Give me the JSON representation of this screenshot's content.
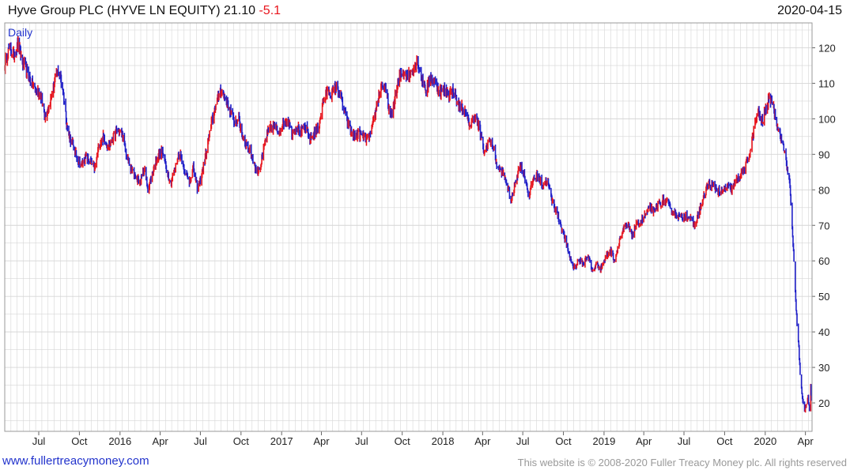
{
  "header": {
    "title": "Hyve Group PLC (HYVE LN EQUITY)",
    "last": "21.10",
    "change": "-5.1",
    "date": "2020-04-15"
  },
  "period_label": "Daily",
  "footer": {
    "site": "www.fullertreacymoney.com",
    "copyright": "This website is © 2008-2020 Fuller Treacy Money plc. All rights reserved"
  },
  "colors": {
    "up": "#e8141c",
    "down": "#1f1fc8",
    "grid": "#d6d6d6"
  },
  "chart_data": {
    "type": "line",
    "title": "Hyve Group PLC (HYVE LN EQUITY)",
    "ylim": [
      12,
      127
    ],
    "xlim": [
      "2015-04-15",
      "2020-04-16"
    ],
    "y_ticks": [
      20,
      30,
      40,
      50,
      60,
      70,
      80,
      90,
      100,
      110,
      120
    ],
    "x_ticks": [
      {
        "date": "2015-07-01",
        "label": "Jul"
      },
      {
        "date": "2015-10-01",
        "label": "Oct"
      },
      {
        "date": "2016-01-01",
        "label": "2016"
      },
      {
        "date": "2016-04-01",
        "label": "Apr"
      },
      {
        "date": "2016-07-01",
        "label": "Jul"
      },
      {
        "date": "2016-10-01",
        "label": "Oct"
      },
      {
        "date": "2017-01-01",
        "label": "2017"
      },
      {
        "date": "2017-04-01",
        "label": "Apr"
      },
      {
        "date": "2017-07-01",
        "label": "Jul"
      },
      {
        "date": "2017-10-01",
        "label": "Oct"
      },
      {
        "date": "2018-01-01",
        "label": "2018"
      },
      {
        "date": "2018-04-01",
        "label": "Apr"
      },
      {
        "date": "2018-07-01",
        "label": "Jul"
      },
      {
        "date": "2018-10-01",
        "label": "Oct"
      },
      {
        "date": "2019-01-01",
        "label": "2019"
      },
      {
        "date": "2019-04-01",
        "label": "Apr"
      },
      {
        "date": "2019-07-01",
        "label": "Jul"
      },
      {
        "date": "2019-10-01",
        "label": "Oct"
      },
      {
        "date": "2020-01-01",
        "label": "2020"
      },
      {
        "date": "2020-04-01",
        "label": "Apr"
      }
    ],
    "grid": true,
    "series": [
      {
        "points": [
          [
            "2015-04-15",
            115
          ],
          [
            "2015-04-25",
            120
          ],
          [
            "2015-05-05",
            118
          ],
          [
            "2015-05-15",
            121
          ],
          [
            "2015-05-25",
            116
          ],
          [
            "2015-06-05",
            113
          ],
          [
            "2015-06-15",
            110
          ],
          [
            "2015-06-25",
            108
          ],
          [
            "2015-07-05",
            107
          ],
          [
            "2015-07-15",
            101
          ],
          [
            "2015-07-25",
            104
          ],
          [
            "2015-08-05",
            110
          ],
          [
            "2015-08-15",
            114
          ],
          [
            "2015-08-25",
            108
          ],
          [
            "2015-09-05",
            96
          ],
          [
            "2015-09-15",
            93
          ],
          [
            "2015-09-25",
            89
          ],
          [
            "2015-10-05",
            87
          ],
          [
            "2015-10-15",
            89
          ],
          [
            "2015-10-25",
            88
          ],
          [
            "2015-11-05",
            86
          ],
          [
            "2015-11-15",
            93
          ],
          [
            "2015-11-25",
            95
          ],
          [
            "2015-12-05",
            92
          ],
          [
            "2015-12-15",
            94
          ],
          [
            "2015-12-25",
            97
          ],
          [
            "2016-01-05",
            96
          ],
          [
            "2016-01-15",
            90
          ],
          [
            "2016-01-25",
            86
          ],
          [
            "2016-02-05",
            84
          ],
          [
            "2016-02-15",
            82
          ],
          [
            "2016-02-25",
            86
          ],
          [
            "2016-03-05",
            80
          ],
          [
            "2016-03-15",
            85
          ],
          [
            "2016-03-25",
            89
          ],
          [
            "2016-04-05",
            91
          ],
          [
            "2016-04-15",
            86
          ],
          [
            "2016-04-25",
            82
          ],
          [
            "2016-05-05",
            86
          ],
          [
            "2016-05-15",
            91
          ],
          [
            "2016-05-25",
            86
          ],
          [
            "2016-06-05",
            82
          ],
          [
            "2016-06-15",
            86
          ],
          [
            "2016-06-25",
            80
          ],
          [
            "2016-07-05",
            85
          ],
          [
            "2016-07-15",
            91
          ],
          [
            "2016-07-25",
            98
          ],
          [
            "2016-08-05",
            104
          ],
          [
            "2016-08-15",
            108
          ],
          [
            "2016-08-25",
            106
          ],
          [
            "2016-09-05",
            103
          ],
          [
            "2016-09-15",
            99
          ],
          [
            "2016-09-25",
            100
          ],
          [
            "2016-10-05",
            95
          ],
          [
            "2016-10-15",
            92
          ],
          [
            "2016-10-25",
            90
          ],
          [
            "2016-11-05",
            85
          ],
          [
            "2016-11-15",
            87
          ],
          [
            "2016-11-25",
            94
          ],
          [
            "2016-12-05",
            97
          ],
          [
            "2016-12-15",
            98
          ],
          [
            "2016-12-25",
            96
          ],
          [
            "2017-01-05",
            99
          ],
          [
            "2017-01-15",
            100
          ],
          [
            "2017-01-25",
            96
          ],
          [
            "2017-02-05",
            98
          ],
          [
            "2017-02-15",
            96
          ],
          [
            "2017-02-25",
            98
          ],
          [
            "2017-03-05",
            94
          ],
          [
            "2017-03-15",
            96
          ],
          [
            "2017-03-25",
            97
          ],
          [
            "2017-04-05",
            105
          ],
          [
            "2017-04-15",
            108
          ],
          [
            "2017-04-25",
            107
          ],
          [
            "2017-05-05",
            109
          ],
          [
            "2017-05-15",
            106
          ],
          [
            "2017-05-25",
            101
          ],
          [
            "2017-06-05",
            97
          ],
          [
            "2017-06-15",
            95
          ],
          [
            "2017-06-25",
            96
          ],
          [
            "2017-07-05",
            95
          ],
          [
            "2017-07-15",
            94
          ],
          [
            "2017-07-25",
            97
          ],
          [
            "2017-08-05",
            104
          ],
          [
            "2017-08-15",
            110
          ],
          [
            "2017-08-25",
            108
          ],
          [
            "2017-09-05",
            100
          ],
          [
            "2017-09-15",
            106
          ],
          [
            "2017-09-25",
            112
          ],
          [
            "2017-10-05",
            113
          ],
          [
            "2017-10-15",
            112
          ],
          [
            "2017-10-25",
            114
          ],
          [
            "2017-11-05",
            116
          ],
          [
            "2017-11-15",
            111
          ],
          [
            "2017-11-25",
            108
          ],
          [
            "2017-12-05",
            112
          ],
          [
            "2017-12-15",
            110
          ],
          [
            "2017-12-25",
            108
          ],
          [
            "2018-01-05",
            108
          ],
          [
            "2018-01-15",
            107
          ],
          [
            "2018-01-25",
            108
          ],
          [
            "2018-02-05",
            104
          ],
          [
            "2018-02-15",
            103
          ],
          [
            "2018-02-25",
            100
          ],
          [
            "2018-03-05",
            98
          ],
          [
            "2018-03-15",
            101
          ],
          [
            "2018-03-25",
            97
          ],
          [
            "2018-04-05",
            90
          ],
          [
            "2018-04-15",
            94
          ],
          [
            "2018-04-25",
            92
          ],
          [
            "2018-05-05",
            86
          ],
          [
            "2018-05-15",
            85
          ],
          [
            "2018-05-25",
            82
          ],
          [
            "2018-06-05",
            77
          ],
          [
            "2018-06-15",
            83
          ],
          [
            "2018-06-25",
            87
          ],
          [
            "2018-07-05",
            84
          ],
          [
            "2018-07-15",
            78
          ],
          [
            "2018-07-25",
            83
          ],
          [
            "2018-08-05",
            84
          ],
          [
            "2018-08-15",
            81
          ],
          [
            "2018-08-25",
            83
          ],
          [
            "2018-09-05",
            77
          ],
          [
            "2018-09-15",
            74
          ],
          [
            "2018-09-25",
            70
          ],
          [
            "2018-10-05",
            66
          ],
          [
            "2018-10-15",
            61
          ],
          [
            "2018-10-25",
            58
          ],
          [
            "2018-11-05",
            60
          ],
          [
            "2018-11-15",
            59
          ],
          [
            "2018-11-25",
            62
          ],
          [
            "2018-12-05",
            57
          ],
          [
            "2018-12-15",
            59
          ],
          [
            "2018-12-25",
            58
          ],
          [
            "2019-01-05",
            61
          ],
          [
            "2019-01-15",
            63
          ],
          [
            "2019-01-25",
            60
          ],
          [
            "2019-02-05",
            66
          ],
          [
            "2019-02-15",
            69
          ],
          [
            "2019-02-25",
            70
          ],
          [
            "2019-03-05",
            67
          ],
          [
            "2019-03-15",
            70
          ],
          [
            "2019-03-25",
            71
          ],
          [
            "2019-04-05",
            73
          ],
          [
            "2019-04-15",
            75
          ],
          [
            "2019-04-25",
            74
          ],
          [
            "2019-05-05",
            76
          ],
          [
            "2019-05-15",
            77
          ],
          [
            "2019-05-25",
            76
          ],
          [
            "2019-06-05",
            74
          ],
          [
            "2019-06-15",
            73
          ],
          [
            "2019-06-25",
            72
          ],
          [
            "2019-07-05",
            73
          ],
          [
            "2019-07-15",
            72
          ],
          [
            "2019-07-25",
            70
          ],
          [
            "2019-08-05",
            74
          ],
          [
            "2019-08-15",
            78
          ],
          [
            "2019-08-25",
            82
          ],
          [
            "2019-09-05",
            81
          ],
          [
            "2019-09-15",
            80
          ],
          [
            "2019-09-25",
            79
          ],
          [
            "2019-10-05",
            81
          ],
          [
            "2019-10-15",
            80
          ],
          [
            "2019-10-25",
            82
          ],
          [
            "2019-11-05",
            84
          ],
          [
            "2019-11-15",
            86
          ],
          [
            "2019-11-25",
            89
          ],
          [
            "2019-12-05",
            96
          ],
          [
            "2019-12-15",
            102
          ],
          [
            "2019-12-25",
            99
          ],
          [
            "2020-01-05",
            104
          ],
          [
            "2020-01-15",
            106
          ],
          [
            "2020-01-25",
            100
          ],
          [
            "2020-02-05",
            95
          ],
          [
            "2020-02-15",
            90
          ],
          [
            "2020-02-25",
            82
          ],
          [
            "2020-03-01",
            72
          ],
          [
            "2020-03-06",
            60
          ],
          [
            "2020-03-11",
            46
          ],
          [
            "2020-03-16",
            38
          ],
          [
            "2020-03-20",
            28
          ],
          [
            "2020-03-25",
            21
          ],
          [
            "2020-03-30",
            18
          ],
          [
            "2020-04-03",
            20
          ],
          [
            "2020-04-07",
            22
          ],
          [
            "2020-04-10",
            18
          ],
          [
            "2020-04-13",
            25
          ],
          [
            "2020-04-15",
            21
          ]
        ]
      }
    ]
  }
}
